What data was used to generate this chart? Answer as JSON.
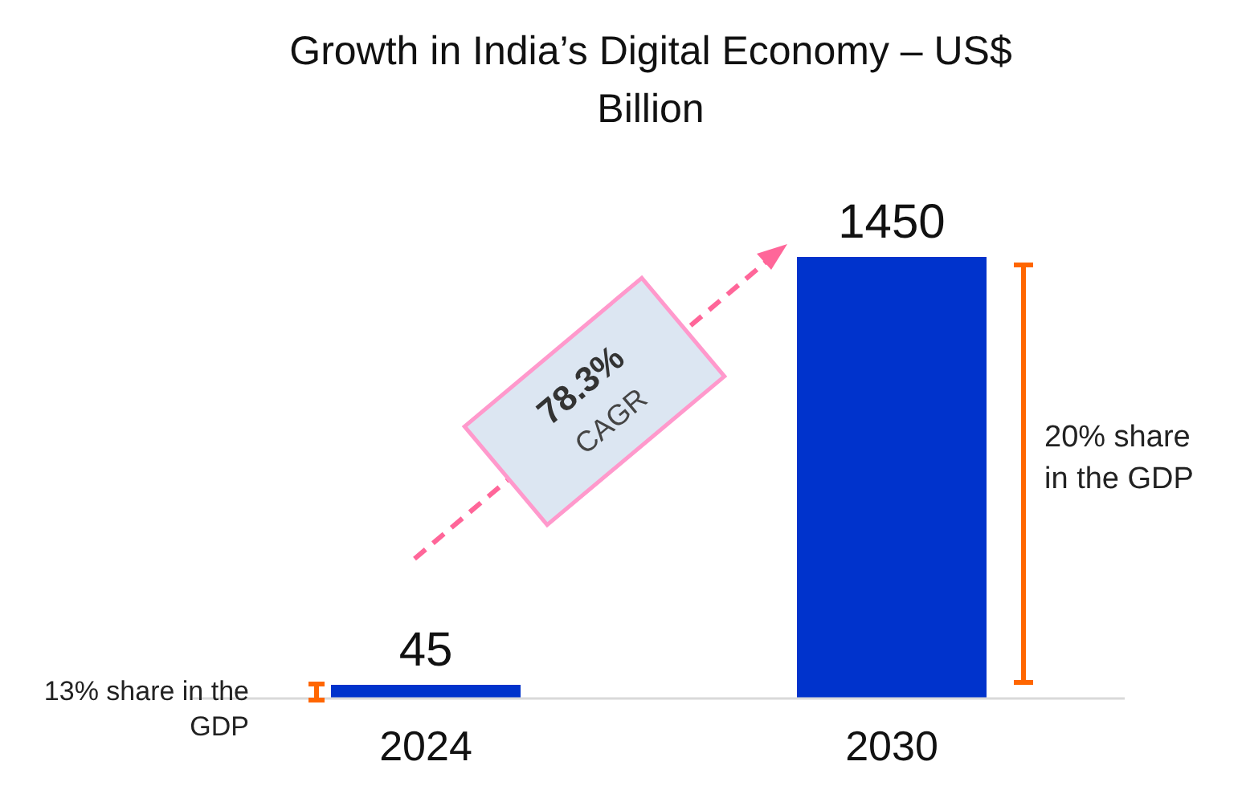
{
  "chart_data": {
    "type": "bar",
    "title": "Growth in India’s Digital Economy – US$ Billion",
    "categories": [
      "2024",
      "2030"
    ],
    "series": [
      {
        "color": "#0033cc",
        "values": [
          45,
          1450
        ]
      }
    ],
    "data_labels": true,
    "annotations": [
      "78.3% CAGR",
      "13% share in the GDP",
      "20% share in the GDP"
    ]
  }
}
